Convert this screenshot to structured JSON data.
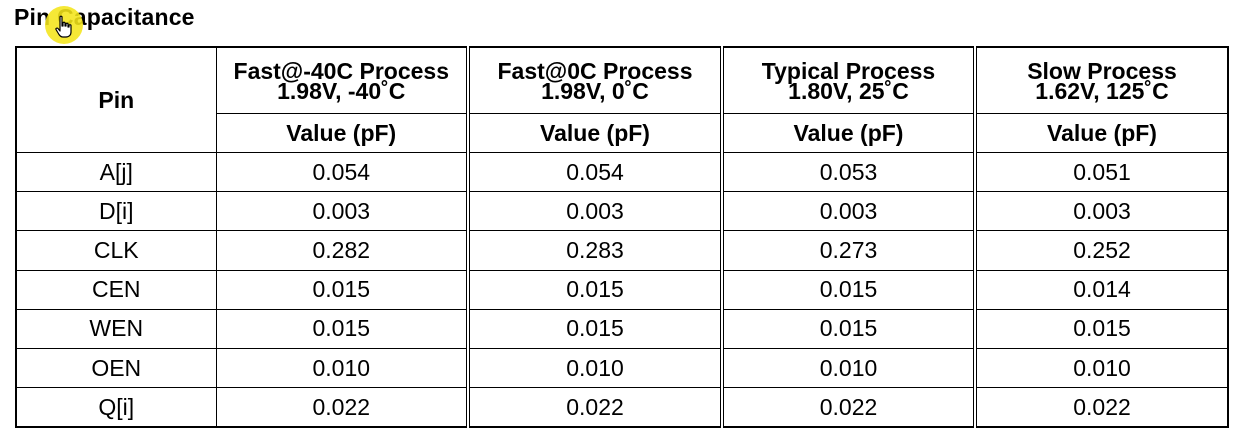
{
  "page": {
    "title": "Pin Capacitance"
  },
  "table": {
    "pin_header": "Pin",
    "processes": [
      {
        "name": "Fast@-40C Process",
        "conditions": "1.98V, -40˚C",
        "unit_label": "Value (pF)"
      },
      {
        "name": "Fast@0C Process",
        "conditions": "1.98V, 0˚C",
        "unit_label": "Value (pF)"
      },
      {
        "name": "Typical Process",
        "conditions": "1.80V, 25˚C",
        "unit_label": "Value (pF)"
      },
      {
        "name": "Slow Process",
        "conditions": "1.62V, 125˚C",
        "unit_label": "Value (pF)"
      }
    ],
    "rows": [
      {
        "pin": "A[j]",
        "values": [
          "0.054",
          "0.054",
          "0.053",
          "0.051"
        ]
      },
      {
        "pin": "D[i]",
        "values": [
          "0.003",
          "0.003",
          "0.003",
          "0.003"
        ]
      },
      {
        "pin": "CLK",
        "values": [
          "0.282",
          "0.283",
          "0.273",
          "0.252"
        ]
      },
      {
        "pin": "CEN",
        "values": [
          "0.015",
          "0.015",
          "0.015",
          "0.014"
        ]
      },
      {
        "pin": "WEN",
        "values": [
          "0.015",
          "0.015",
          "0.015",
          "0.015"
        ]
      },
      {
        "pin": "OEN",
        "values": [
          "0.010",
          "0.010",
          "0.010",
          "0.010"
        ]
      },
      {
        "pin": "Q[i]",
        "values": [
          "0.022",
          "0.022",
          "0.022",
          "0.022"
        ]
      }
    ]
  },
  "cursor": {
    "icon": "hand-pointer-icon",
    "highlight_color": "#f4e51a"
  }
}
